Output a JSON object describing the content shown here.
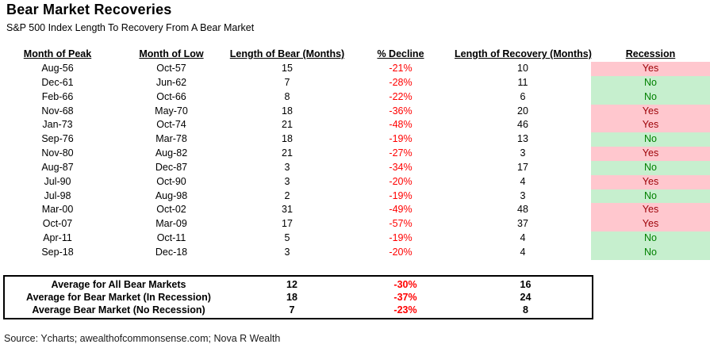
{
  "title": "Bear Market Recoveries",
  "subtitle": "S&P 500 Index Length To Recovery From A Bear Market",
  "source_note": "Source: Ycharts; awealthofcommonsense.com; Nova R Wealth",
  "colors": {
    "text": "#000000",
    "border": "#000000",
    "decline_red": "#ff0000",
    "recession_yes_bg": "#ffc7ce",
    "recession_yes_text": "#9c0006",
    "recession_no_bg": "#c6efce",
    "recession_no_text": "#008000"
  },
  "chart_data": {
    "type": "table",
    "title": "Bear Market Recoveries",
    "subtitle": "S&P 500 Index Length To Recovery From A Bear Market",
    "columns": [
      "Month of Peak",
      "Month of Low",
      "Length of Bear (Months)",
      "% Decline",
      "Length of Recovery (Months)",
      "Recession"
    ],
    "rows": [
      [
        "Aug-56",
        "Oct-57",
        "15",
        "-21%",
        "10",
        "Yes"
      ],
      [
        "Dec-61",
        "Jun-62",
        "7",
        "-28%",
        "11",
        "No"
      ],
      [
        "Feb-66",
        "Oct-66",
        "8",
        "-22%",
        "6",
        "No"
      ],
      [
        "Nov-68",
        "May-70",
        "18",
        "-36%",
        "20",
        "Yes"
      ],
      [
        "Jan-73",
        "Oct-74",
        "21",
        "-48%",
        "46",
        "Yes"
      ],
      [
        "Sep-76",
        "Mar-78",
        "18",
        "-19%",
        "13",
        "No"
      ],
      [
        "Nov-80",
        "Aug-82",
        "21",
        "-27%",
        "3",
        "Yes"
      ],
      [
        "Aug-87",
        "Dec-87",
        "3",
        "-34%",
        "17",
        "No"
      ],
      [
        "Jul-90",
        "Oct-90",
        "3",
        "-20%",
        "4",
        "Yes"
      ],
      [
        "Jul-98",
        "Aug-98",
        "2",
        "-19%",
        "3",
        "No"
      ],
      [
        "Mar-00",
        "Oct-02",
        "31",
        "-49%",
        "48",
        "Yes"
      ],
      [
        "Oct-07",
        "Mar-09",
        "17",
        "-57%",
        "37",
        "Yes"
      ],
      [
        "Apr-11",
        "Oct-11",
        "5",
        "-19%",
        "4",
        "No"
      ],
      [
        "Sep-18",
        "Dec-18",
        "3",
        "-20%",
        "4",
        "No"
      ]
    ],
    "summary_rows": [
      {
        "label": "Average for All Bear Markets",
        "length_of_bear": "12",
        "pct_decline": "-30%",
        "length_of_recovery": "16"
      },
      {
        "label": "Average for Bear Market (In Recession)",
        "length_of_bear": "18",
        "pct_decline": "-37%",
        "length_of_recovery": "24"
      },
      {
        "label": "Average Bear Market (No Recession)",
        "length_of_bear": "7",
        "pct_decline": "-23%",
        "length_of_recovery": "8"
      }
    ]
  }
}
